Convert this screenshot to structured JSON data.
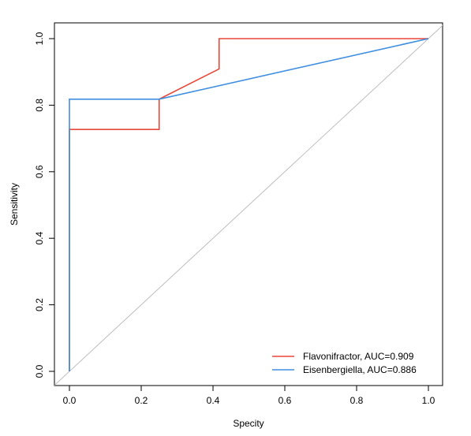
{
  "chart_data": {
    "type": "line",
    "xlabel": "Specity",
    "ylabel": "Sensitivity",
    "xlim": [
      0.0,
      1.0
    ],
    "ylim": [
      0.0,
      1.0
    ],
    "x_ticks": [
      "0.0",
      "0.2",
      "0.4",
      "0.6",
      "0.8",
      "1.0"
    ],
    "y_ticks": [
      "0.0",
      "0.2",
      "0.4",
      "0.6",
      "0.8",
      "1.0"
    ],
    "grid": false,
    "legend_position": "bottom-right",
    "series": [
      {
        "name": "Flavonifractor, AUC=0.909",
        "color": "#e8473b",
        "points": [
          [
            0.0,
            0.0
          ],
          [
            0.0,
            0.727
          ],
          [
            0.25,
            0.727
          ],
          [
            0.25,
            0.818
          ],
          [
            0.417,
            0.909
          ],
          [
            0.417,
            1.0
          ],
          [
            1.0,
            1.0
          ]
        ]
      },
      {
        "name": "Eisenbergiella, AUC=0.886",
        "color": "#3f8fe0",
        "points": [
          [
            0.0,
            0.0
          ],
          [
            0.0,
            0.818
          ],
          [
            0.25,
            0.818
          ],
          [
            1.0,
            1.0
          ]
        ]
      }
    ],
    "reference_line": {
      "color": "#bdbdbd",
      "points": [
        [
          -0.05,
          -0.05
        ],
        [
          1.05,
          1.05
        ]
      ]
    }
  }
}
